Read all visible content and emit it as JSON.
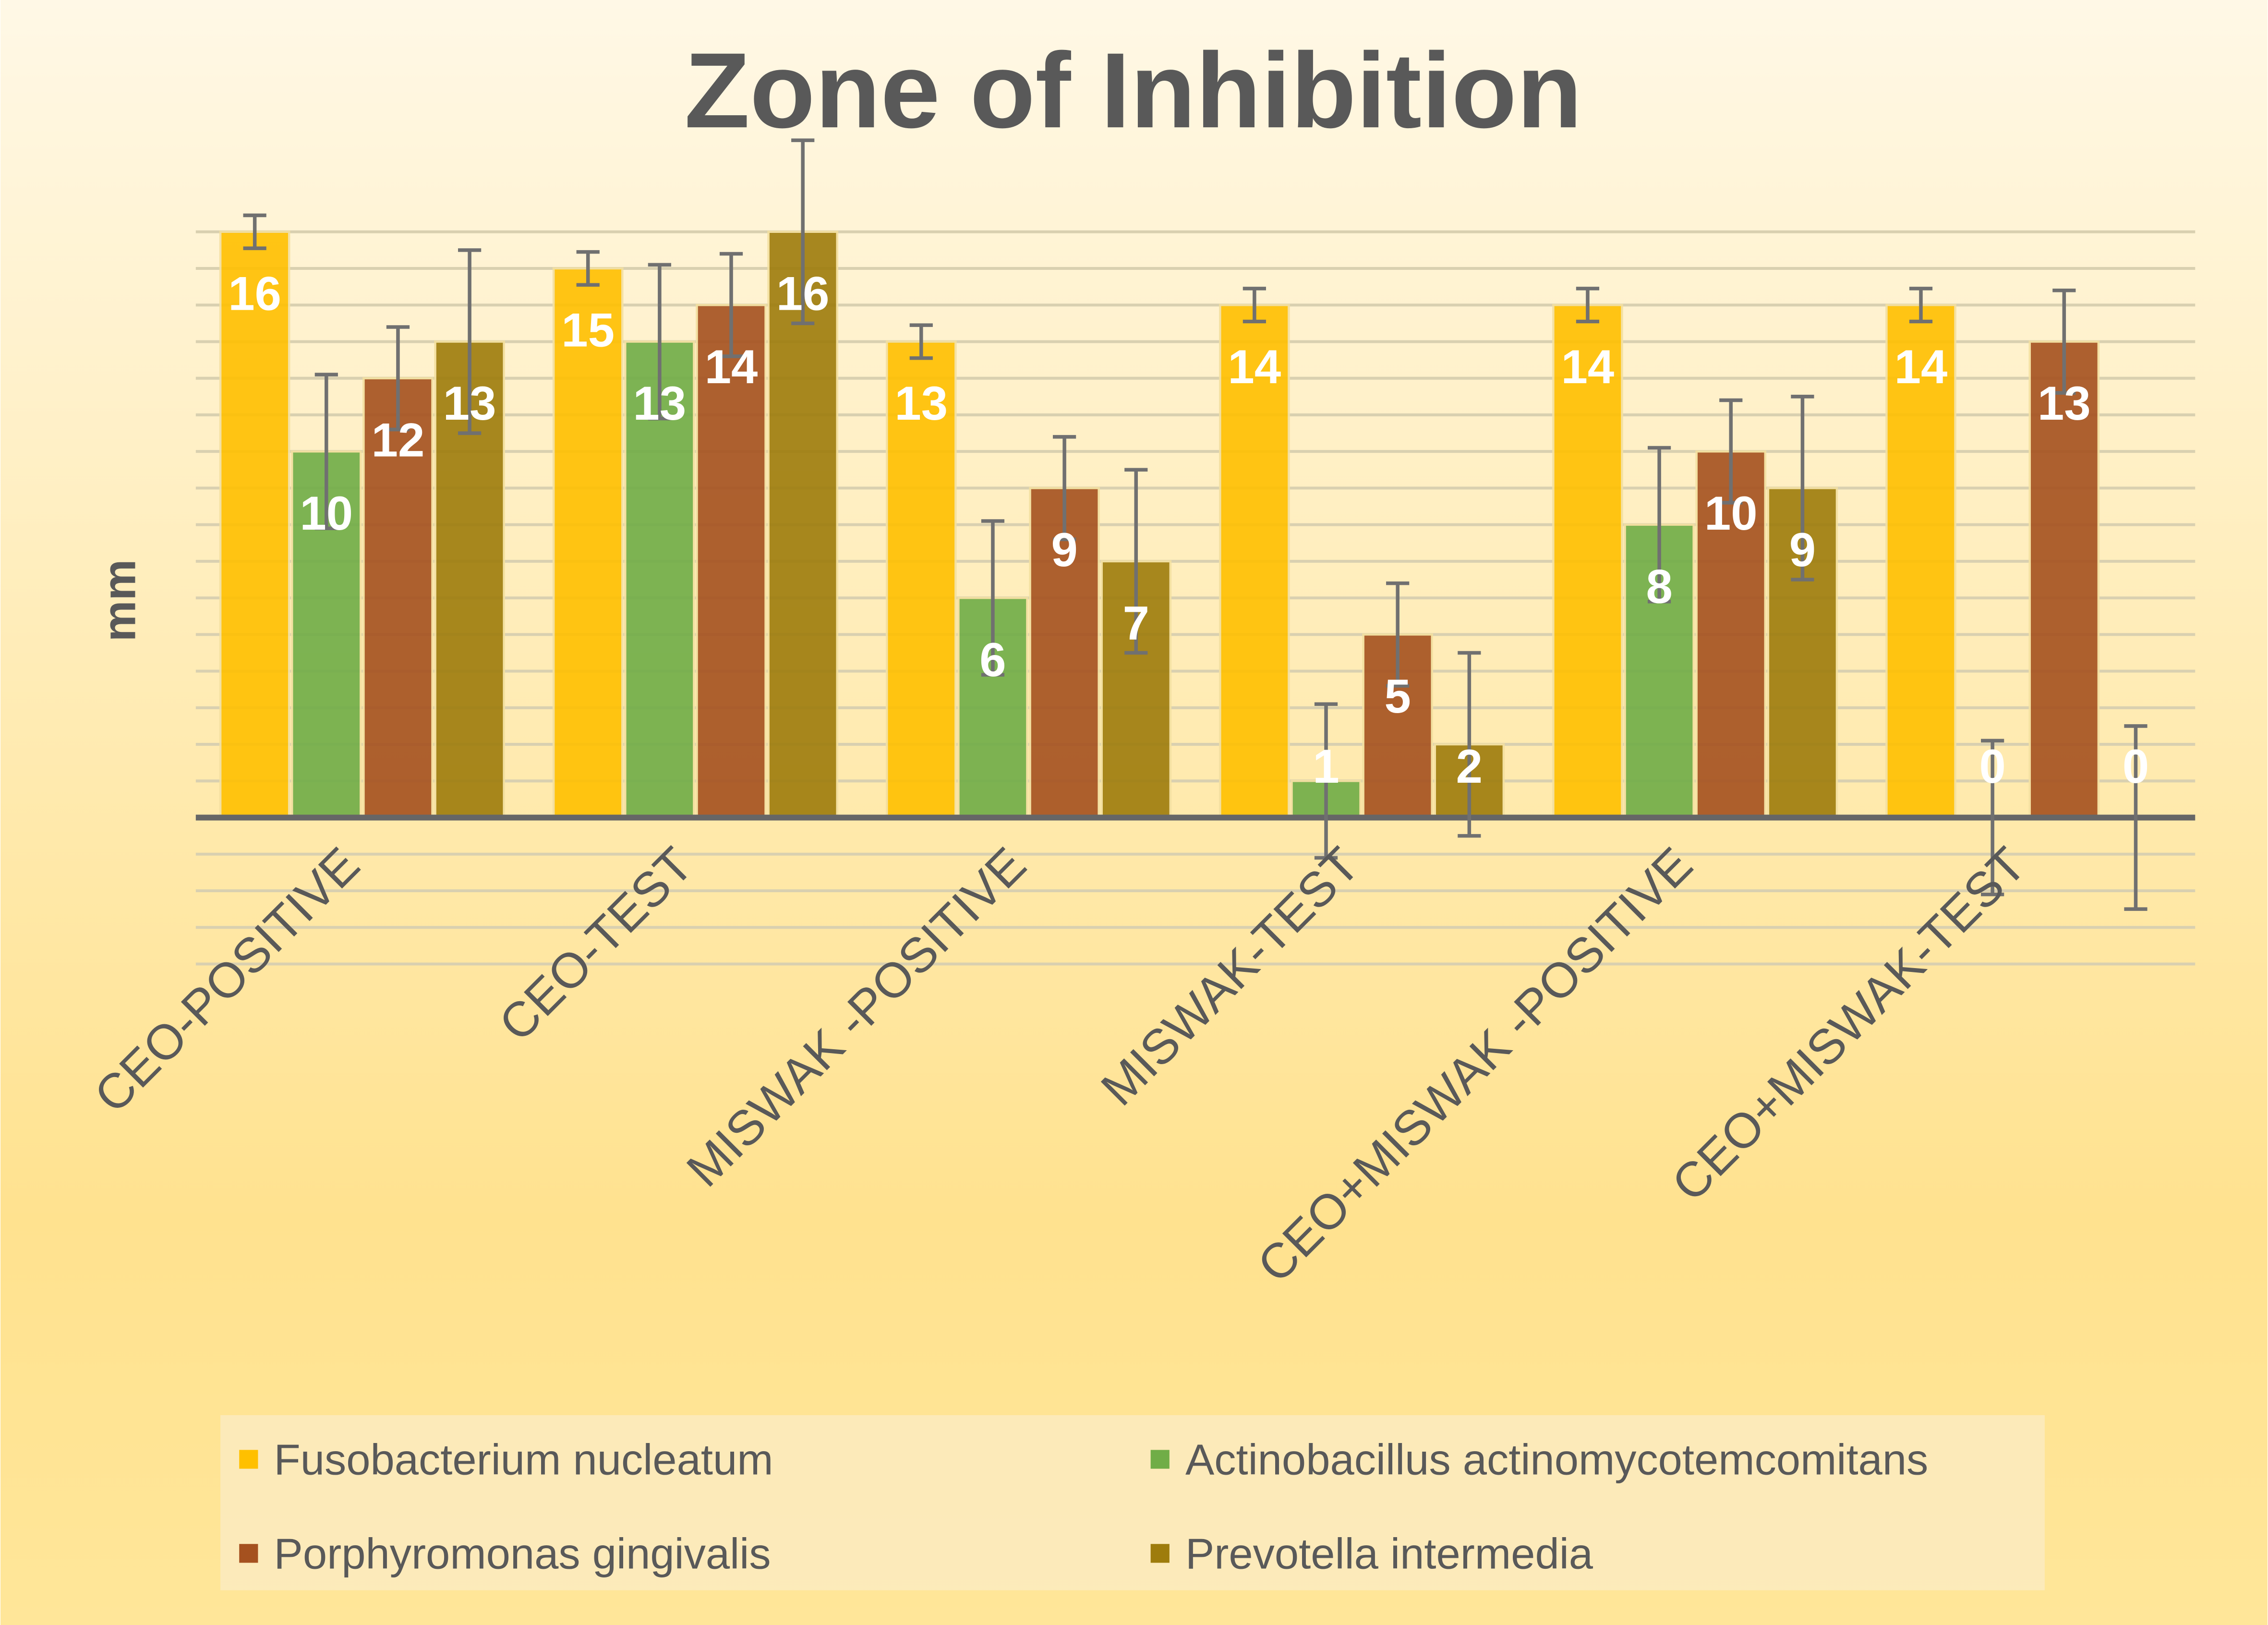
{
  "chart_data": {
    "type": "bar",
    "title": "Zone of Inhibition",
    "xlabel": "",
    "ylabel": "mm",
    "ylim": [
      -4,
      16
    ],
    "grid": true,
    "legend_position": "bottom",
    "categories": [
      "CEO-POSITIVE",
      "CEO-TEST",
      "MISWAK -POSITIVE",
      "MISWAK-TEST",
      "CEO+MISWAK -POSITIVE",
      "CEO+MISWAK-TEST"
    ],
    "series": [
      {
        "name": "Fusobacterium nucleatum",
        "color": "#FFC000",
        "values": [
          16,
          15,
          13,
          14,
          14,
          14
        ],
        "error": 0.45
      },
      {
        "name": "Actinobacillus actinomycotemcomitans",
        "color": "#70AD47",
        "values": [
          10,
          13,
          6,
          1,
          8,
          0
        ],
        "error": 2.1
      },
      {
        "name": "Porphyromonas gingivalis",
        "color": "#A5511F",
        "values": [
          12,
          14,
          9,
          5,
          10,
          13
        ],
        "error": 1.4
      },
      {
        "name": "Prevotella intermedia",
        "color": "#9E7C0C",
        "values": [
          13,
          16,
          7,
          2,
          9,
          0
        ],
        "error": 2.5
      }
    ]
  }
}
